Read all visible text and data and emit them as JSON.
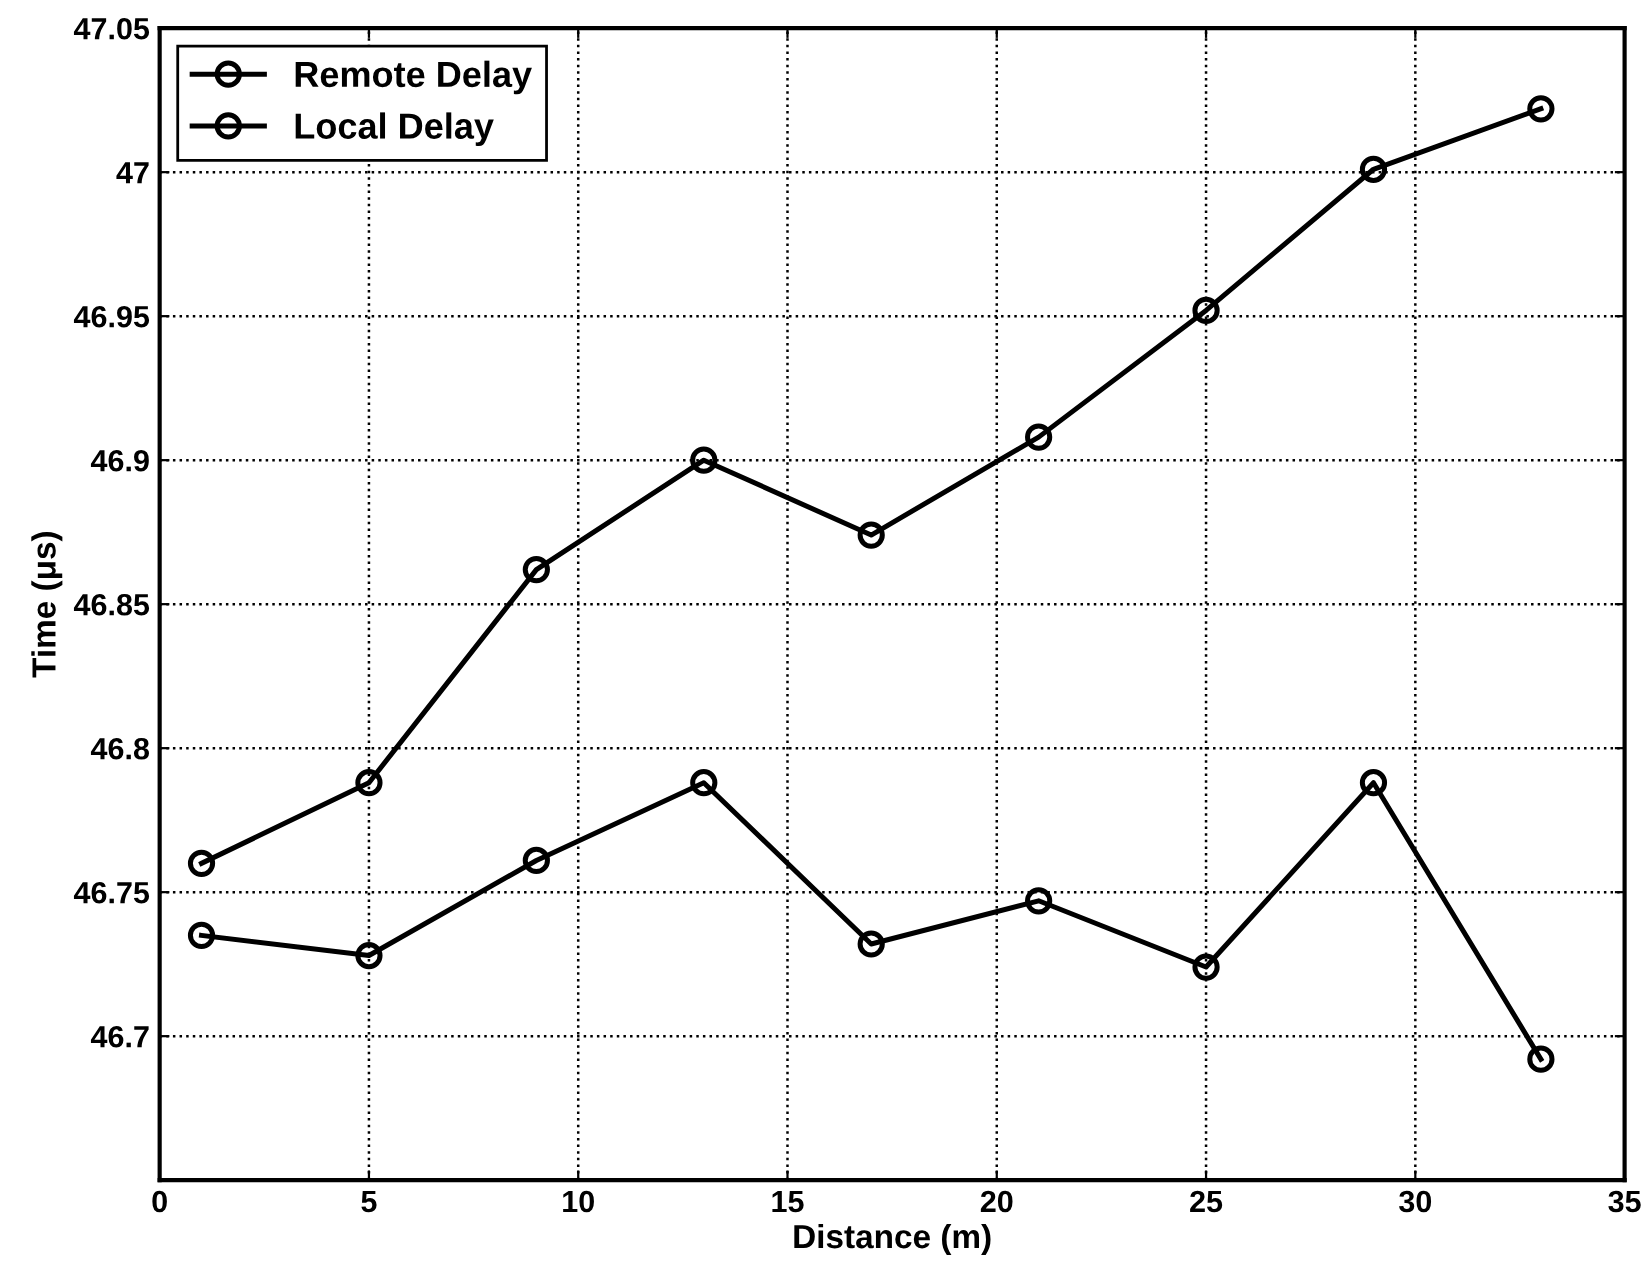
{
  "chart_data": {
    "type": "line",
    "xlabel": "Distance (m)",
    "ylabel": "Time (μs)",
    "x": [
      1,
      5,
      9,
      13,
      17,
      21,
      25,
      29,
      33
    ],
    "series": [
      {
        "name": "Remote Delay",
        "color": "#000000",
        "values": [
          46.76,
          46.788,
          46.862,
          46.9,
          46.874,
          46.908,
          46.952,
          47.001,
          47.022
        ]
      },
      {
        "name": "Local Delay",
        "color": "#000000",
        "values": [
          46.735,
          46.728,
          46.761,
          46.788,
          46.732,
          46.747,
          46.724,
          46.788,
          46.692
        ]
      }
    ],
    "xlim": [
      0,
      35
    ],
    "xticks": [
      0,
      5,
      10,
      15,
      20,
      25,
      30,
      35
    ],
    "ylim": [
      46.65,
      47.05
    ],
    "yticks": [
      {
        "value": 46.65,
        "label": null
      },
      46.7,
      46.75,
      46.8,
      46.85,
      46.9,
      46.95,
      47,
      47.05
    ],
    "grid": true,
    "legend": "top left",
    "marker": "circle",
    "line_style": "solid"
  }
}
